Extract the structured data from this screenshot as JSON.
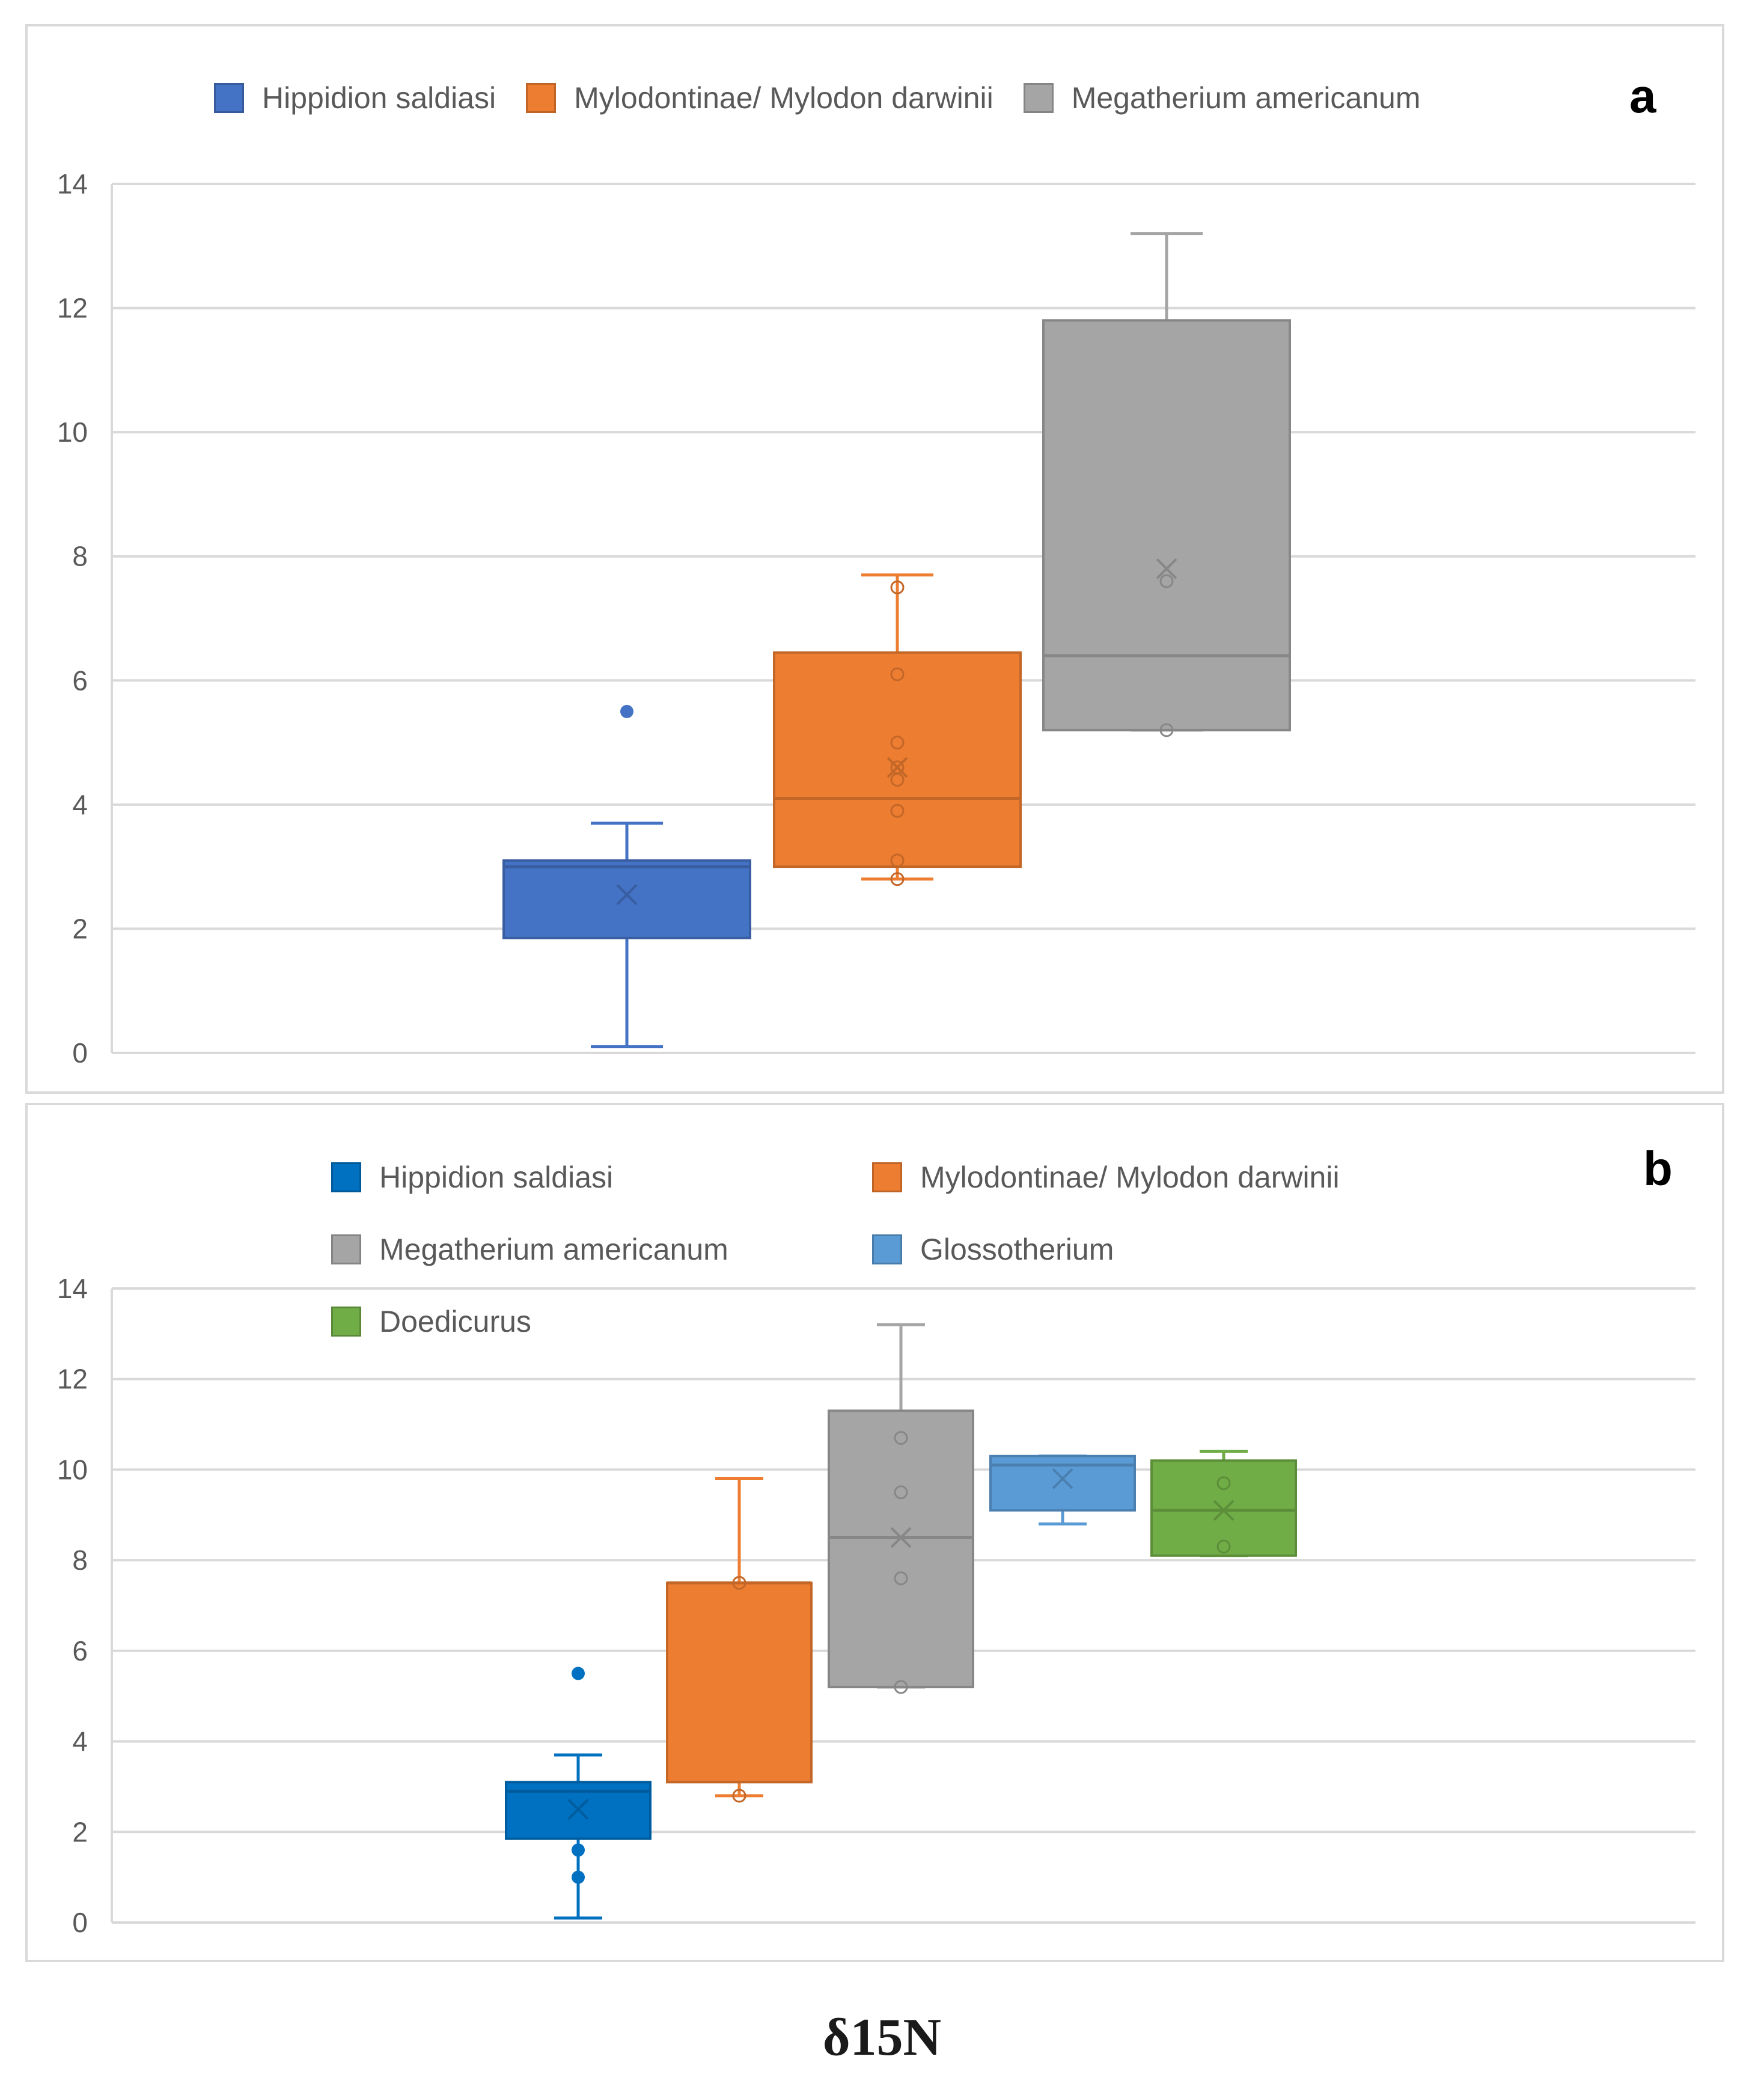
{
  "caption": "δ15N",
  "chart_data": [
    {
      "type": "box",
      "panel_label": "a",
      "ylim": [
        0,
        14
      ],
      "yticks": [
        0,
        2,
        4,
        6,
        8,
        10,
        12,
        14
      ],
      "grid": true,
      "legend_position": "top",
      "series": [
        {
          "name": "Hippidion saldiasi",
          "color": "#4472c4",
          "whisker_low": 0.1,
          "q1": 1.85,
          "median": 3.0,
          "q3": 3.1,
          "whisker_high": 3.7,
          "mean": 2.55,
          "points": [],
          "outliers": [
            5.5
          ]
        },
        {
          "name": "Mylodontinae/ Mylodon darwinii",
          "color": "#ed7d31",
          "whisker_low": 2.8,
          "q1": 3.0,
          "median": 4.1,
          "q3": 6.45,
          "whisker_high": 7.7,
          "mean": 4.6,
          "points": [
            2.8,
            3.1,
            3.9,
            4.4,
            4.6,
            5.0,
            6.1,
            7.5
          ],
          "outliers": []
        },
        {
          "name": "Megatherium americanum",
          "color": "#a5a5a5",
          "whisker_low": 5.2,
          "q1": 5.2,
          "median": 6.4,
          "q3": 11.8,
          "whisker_high": 13.2,
          "mean": 7.8,
          "points": [
            5.2,
            7.6
          ],
          "outliers": []
        }
      ]
    },
    {
      "type": "box",
      "panel_label": "b",
      "ylim": [
        0,
        14
      ],
      "yticks": [
        0,
        2,
        4,
        6,
        8,
        10,
        12,
        14
      ],
      "grid": true,
      "legend_position": "top",
      "series": [
        {
          "name": "Hippidion saldiasi",
          "color": "#0070c0",
          "whisker_low": 0.1,
          "q1": 1.85,
          "median": 2.9,
          "q3": 3.1,
          "whisker_high": 3.7,
          "mean": 2.5,
          "points": [],
          "outliers": [
            5.5,
            1.6,
            1.0
          ]
        },
        {
          "name": "Mylodontinae/ Mylodon darwinii",
          "color": "#ed7d31",
          "whisker_low": 2.8,
          "q1": 3.1,
          "median": 7.5,
          "q3": 7.5,
          "whisker_high": 9.8,
          "mean": null,
          "points": [
            2.8,
            7.5
          ],
          "outliers": []
        },
        {
          "name": "Megatherium americanum",
          "color": "#a5a5a5",
          "whisker_low": 5.2,
          "q1": 5.2,
          "median": 8.5,
          "q3": 11.3,
          "whisker_high": 13.2,
          "mean": 8.5,
          "points": [
            5.2,
            7.6,
            9.5,
            10.7
          ],
          "outliers": []
        },
        {
          "name": "Glossotherium",
          "color": "#5b9bd5",
          "whisker_low": 8.8,
          "q1": 9.1,
          "median": 10.1,
          "q3": 10.3,
          "whisker_high": 10.3,
          "mean": 9.8,
          "points": [],
          "outliers": []
        },
        {
          "name": "Doedicurus",
          "color": "#70ad47",
          "whisker_low": 8.1,
          "q1": 8.1,
          "median": 9.1,
          "q3": 10.2,
          "whisker_high": 10.4,
          "mean": 9.1,
          "points": [
            8.3,
            9.7
          ],
          "outliers": []
        }
      ]
    }
  ]
}
